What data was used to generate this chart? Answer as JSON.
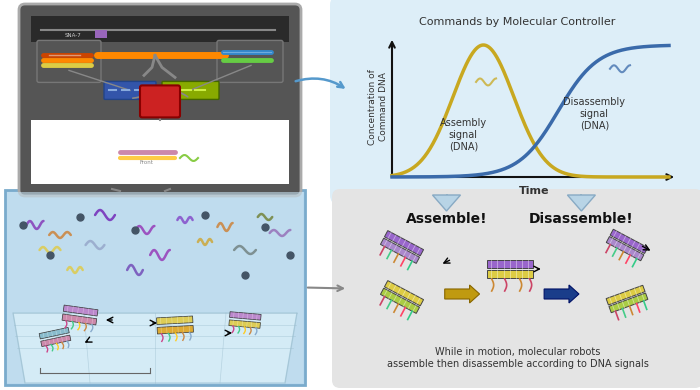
{
  "fig_width": 7.0,
  "fig_height": 3.9,
  "dpi": 100,
  "bg_color": "#ffffff",
  "top_panel_bg": "#ddeef8",
  "top_panel_title": "Commands by Molecular Controller",
  "top_panel_ylabel": "Concentration of\nCommand DNA",
  "top_panel_xlabel": "Time",
  "assembly_label": "Assembly\nsignal\n(DNA)",
  "disassembly_label": "Disassembly\nsignal\n(DNA)",
  "assembly_color": "#c8a820",
  "disassembly_color": "#3a6aaa",
  "bottom_panel_bg": "#e4e4e4",
  "assemble_text": "Assemble!",
  "disassemble_text": "Disassemble!",
  "bottom_caption": "While in motion, molecular robots\nassemble then disassemble according to DNA signals",
  "lt_panel_bg_dark": "#333333",
  "lt_panel_bg_white": "#ffffff",
  "lt_panel_border": "#999999",
  "aqua_bg": "#b8d8ed",
  "aqua_border": "#7aabcc",
  "aqua_floor": "#cfe8f5",
  "arrow_color_gold": "#c09a10",
  "arrow_color_blue": "#1a3d8a"
}
